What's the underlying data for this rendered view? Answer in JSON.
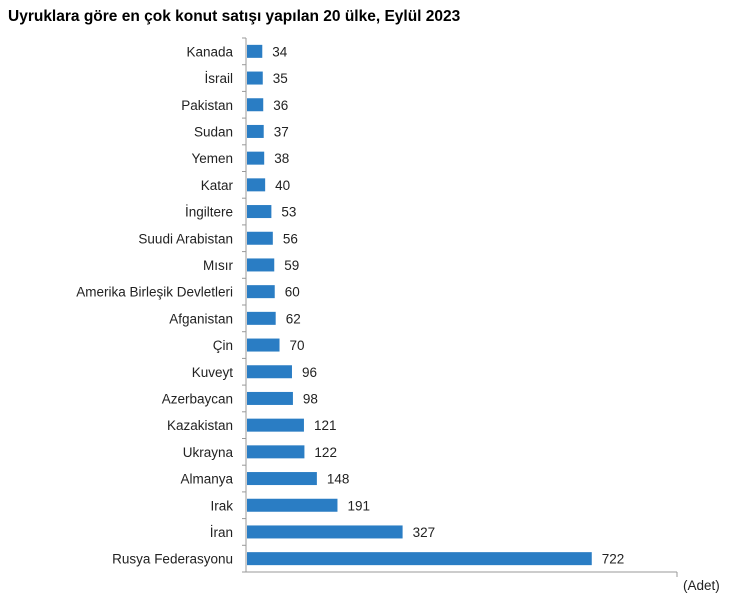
{
  "chart_data": {
    "type": "bar",
    "orientation": "horizontal",
    "title": "Uyruklara göre en çok konut satışı yapılan 20 ülke, Eylül 2023",
    "xlabel": "(Adet)",
    "ylabel": "",
    "xlim": [
      0,
      900
    ],
    "grid": false,
    "bar_color": "#2a7dc4",
    "categories": [
      "Kanada",
      "İsrail",
      "Pakistan",
      "Sudan",
      "Yemen",
      "Katar",
      "İngiltere",
      "Suudi Arabistan",
      "Mısır",
      "Amerika Birleşik Devletleri",
      "Afganistan",
      "Çin",
      "Kuveyt",
      "Azerbaycan",
      "Kazakistan",
      "Ukrayna",
      "Almanya",
      "Irak",
      "İran",
      "Rusya Federasyonu"
    ],
    "values": [
      34,
      35,
      36,
      37,
      38,
      40,
      53,
      56,
      59,
      60,
      62,
      70,
      96,
      98,
      121,
      122,
      148,
      191,
      327,
      722
    ]
  }
}
